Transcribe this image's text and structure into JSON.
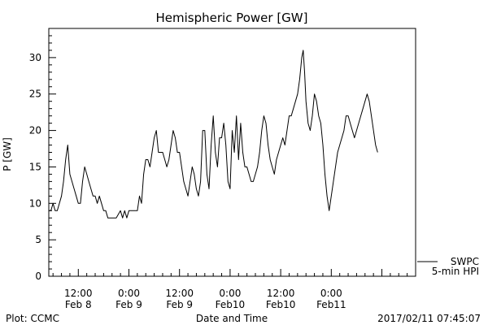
{
  "chart_data": {
    "type": "line",
    "title": "Hemispheric Power [GW]",
    "xlabel": "Date and Time",
    "ylabel": "P [GW]",
    "ylim": [
      0,
      34
    ],
    "yticks": [
      0,
      5,
      10,
      15,
      20,
      25,
      30
    ],
    "grid": false,
    "xlim": [
      "2017-02-08 05:00",
      "2017-02-11 20:00"
    ],
    "xticks": [
      {
        "time": "2017-02-08 12:00",
        "label1": "12:00",
        "label2": "Feb 8"
      },
      {
        "time": "2017-02-09 00:00",
        "label1": "0:00",
        "label2": "Feb 9"
      },
      {
        "time": "2017-02-09 12:00",
        "label1": "12:00",
        "label2": "Feb 9"
      },
      {
        "time": "2017-02-10 00:00",
        "label1": "0:00",
        "label2": "Feb10"
      },
      {
        "time": "2017-02-10 12:00",
        "label1": "12:00",
        "label2": "Feb10"
      },
      {
        "time": "2017-02-11 00:00",
        "label1": "0:00",
        "label2": "Feb11"
      }
    ],
    "legend": {
      "placement": "right",
      "entries": [
        "SWPC",
        "5-min HPI"
      ]
    },
    "series": [
      {
        "name": "SWPC",
        "points": [
          [
            "2017-02-08 05:00",
            9
          ],
          [
            "2017-02-08 05:30",
            9
          ],
          [
            "2017-02-08 06:00",
            10
          ],
          [
            "2017-02-08 06:30",
            9
          ],
          [
            "2017-02-08 07:00",
            9
          ],
          [
            "2017-02-08 07:30",
            10
          ],
          [
            "2017-02-08 08:00",
            11
          ],
          [
            "2017-02-08 08:30",
            13
          ],
          [
            "2017-02-08 09:00",
            16
          ],
          [
            "2017-02-08 09:30",
            18
          ],
          [
            "2017-02-08 10:00",
            14
          ],
          [
            "2017-02-08 10:30",
            13
          ],
          [
            "2017-02-08 11:00",
            12
          ],
          [
            "2017-02-08 11:30",
            11
          ],
          [
            "2017-02-08 12:00",
            10
          ],
          [
            "2017-02-08 12:30",
            10
          ],
          [
            "2017-02-08 13:00",
            13
          ],
          [
            "2017-02-08 13:30",
            15
          ],
          [
            "2017-02-08 14:00",
            14
          ],
          [
            "2017-02-08 14:30",
            13
          ],
          [
            "2017-02-08 15:00",
            12
          ],
          [
            "2017-02-08 15:30",
            11
          ],
          [
            "2017-02-08 16:00",
            11
          ],
          [
            "2017-02-08 16:30",
            10
          ],
          [
            "2017-02-08 17:00",
            11
          ],
          [
            "2017-02-08 17:30",
            10
          ],
          [
            "2017-02-08 18:00",
            9
          ],
          [
            "2017-02-08 18:30",
            9
          ],
          [
            "2017-02-08 19:00",
            8
          ],
          [
            "2017-02-08 20:00",
            8
          ],
          [
            "2017-02-08 21:00",
            8
          ],
          [
            "2017-02-08 22:00",
            9
          ],
          [
            "2017-02-08 22:30",
            8
          ],
          [
            "2017-02-08 23:00",
            9
          ],
          [
            "2017-02-08 23:30",
            8
          ],
          [
            "2017-02-09 00:00",
            9
          ],
          [
            "2017-02-09 00:30",
            9
          ],
          [
            "2017-02-09 01:00",
            9
          ],
          [
            "2017-02-09 01:30",
            9
          ],
          [
            "2017-02-09 02:00",
            9
          ],
          [
            "2017-02-09 02:30",
            11
          ],
          [
            "2017-02-09 03:00",
            10
          ],
          [
            "2017-02-09 03:30",
            14
          ],
          [
            "2017-02-09 04:00",
            16
          ],
          [
            "2017-02-09 04:30",
            16
          ],
          [
            "2017-02-09 05:00",
            15
          ],
          [
            "2017-02-09 05:30",
            17
          ],
          [
            "2017-02-09 06:00",
            19
          ],
          [
            "2017-02-09 06:30",
            20
          ],
          [
            "2017-02-09 07:00",
            17
          ],
          [
            "2017-02-09 07:30",
            17
          ],
          [
            "2017-02-09 08:00",
            17
          ],
          [
            "2017-02-09 08:30",
            16
          ],
          [
            "2017-02-09 09:00",
            15
          ],
          [
            "2017-02-09 09:30",
            16
          ],
          [
            "2017-02-09 10:00",
            18
          ],
          [
            "2017-02-09 10:30",
            20
          ],
          [
            "2017-02-09 11:00",
            19
          ],
          [
            "2017-02-09 11:30",
            17
          ],
          [
            "2017-02-09 12:00",
            17
          ],
          [
            "2017-02-09 12:30",
            15
          ],
          [
            "2017-02-09 13:00",
            13
          ],
          [
            "2017-02-09 13:30",
            12
          ],
          [
            "2017-02-09 14:00",
            11
          ],
          [
            "2017-02-09 14:30",
            13
          ],
          [
            "2017-02-09 15:00",
            15
          ],
          [
            "2017-02-09 15:30",
            14
          ],
          [
            "2017-02-09 16:00",
            12
          ],
          [
            "2017-02-09 16:30",
            11
          ],
          [
            "2017-02-09 17:00",
            13
          ],
          [
            "2017-02-09 17:30",
            20
          ],
          [
            "2017-02-09 18:00",
            20
          ],
          [
            "2017-02-09 18:30",
            14
          ],
          [
            "2017-02-09 19:00",
            12
          ],
          [
            "2017-02-09 19:30",
            18
          ],
          [
            "2017-02-09 20:00",
            22
          ],
          [
            "2017-02-09 20:30",
            17
          ],
          [
            "2017-02-09 21:00",
            15
          ],
          [
            "2017-02-09 21:30",
            19
          ],
          [
            "2017-02-09 22:00",
            19
          ],
          [
            "2017-02-09 22:30",
            21
          ],
          [
            "2017-02-09 23:00",
            18
          ],
          [
            "2017-02-09 23:30",
            13
          ],
          [
            "2017-02-10 00:00",
            12
          ],
          [
            "2017-02-10 00:30",
            20
          ],
          [
            "2017-02-10 01:00",
            17
          ],
          [
            "2017-02-10 01:30",
            22
          ],
          [
            "2017-02-10 02:00",
            16
          ],
          [
            "2017-02-10 02:30",
            21
          ],
          [
            "2017-02-10 03:00",
            17
          ],
          [
            "2017-02-10 03:30",
            15
          ],
          [
            "2017-02-10 04:00",
            15
          ],
          [
            "2017-02-10 04:30",
            14
          ],
          [
            "2017-02-10 05:00",
            13
          ],
          [
            "2017-02-10 05:30",
            13
          ],
          [
            "2017-02-10 06:00",
            14
          ],
          [
            "2017-02-10 06:30",
            15
          ],
          [
            "2017-02-10 07:00",
            17
          ],
          [
            "2017-02-10 07:30",
            20
          ],
          [
            "2017-02-10 08:00",
            22
          ],
          [
            "2017-02-10 08:30",
            21
          ],
          [
            "2017-02-10 09:00",
            18
          ],
          [
            "2017-02-10 09:30",
            16
          ],
          [
            "2017-02-10 10:00",
            15
          ],
          [
            "2017-02-10 10:30",
            14
          ],
          [
            "2017-02-10 11:00",
            16
          ],
          [
            "2017-02-10 11:30",
            17
          ],
          [
            "2017-02-10 12:00",
            18
          ],
          [
            "2017-02-10 12:30",
            19
          ],
          [
            "2017-02-10 13:00",
            18
          ],
          [
            "2017-02-10 13:30",
            20
          ],
          [
            "2017-02-10 14:00",
            22
          ],
          [
            "2017-02-10 14:30",
            22
          ],
          [
            "2017-02-10 15:00",
            23
          ],
          [
            "2017-02-10 15:30",
            24
          ],
          [
            "2017-02-10 16:00",
            25
          ],
          [
            "2017-02-10 16:30",
            27
          ],
          [
            "2017-02-10 17:00",
            30
          ],
          [
            "2017-02-10 17:20",
            31
          ],
          [
            "2017-02-10 17:40",
            28
          ],
          [
            "2017-02-10 18:00",
            24
          ],
          [
            "2017-02-10 18:30",
            21
          ],
          [
            "2017-02-10 19:00",
            20
          ],
          [
            "2017-02-10 19:30",
            22
          ],
          [
            "2017-02-10 20:00",
            25
          ],
          [
            "2017-02-10 20:30",
            24
          ],
          [
            "2017-02-10 21:00",
            22
          ],
          [
            "2017-02-10 21:30",
            21
          ],
          [
            "2017-02-10 22:00",
            18
          ],
          [
            "2017-02-10 22:30",
            14
          ],
          [
            "2017-02-10 23:00",
            11
          ],
          [
            "2017-02-10 23:30",
            9
          ],
          [
            "2017-02-11 00:00",
            11
          ],
          [
            "2017-02-11 00:30",
            13
          ],
          [
            "2017-02-11 01:00",
            15
          ],
          [
            "2017-02-11 01:30",
            17
          ],
          [
            "2017-02-11 02:00",
            18
          ],
          [
            "2017-02-11 02:30",
            19
          ],
          [
            "2017-02-11 03:00",
            20
          ],
          [
            "2017-02-11 03:30",
            22
          ],
          [
            "2017-02-11 04:00",
            22
          ],
          [
            "2017-02-11 04:30",
            21
          ],
          [
            "2017-02-11 05:00",
            20
          ],
          [
            "2017-02-11 05:30",
            19
          ],
          [
            "2017-02-11 06:00",
            20
          ],
          [
            "2017-02-11 06:30",
            21
          ],
          [
            "2017-02-11 07:00",
            22
          ],
          [
            "2017-02-11 07:30",
            23
          ],
          [
            "2017-02-11 08:00",
            24
          ],
          [
            "2017-02-11 08:30",
            25
          ],
          [
            "2017-02-11 09:00",
            24
          ],
          [
            "2017-02-11 09:30",
            22
          ],
          [
            "2017-02-11 10:00",
            20
          ],
          [
            "2017-02-11 10:30",
            18
          ],
          [
            "2017-02-11 11:00",
            17
          ]
        ]
      },
      {
        "name": "5-min HPI",
        "points": []
      }
    ]
  },
  "footer": {
    "left": "Plot: CCMC",
    "right": "2017/02/11 07:45:07"
  }
}
